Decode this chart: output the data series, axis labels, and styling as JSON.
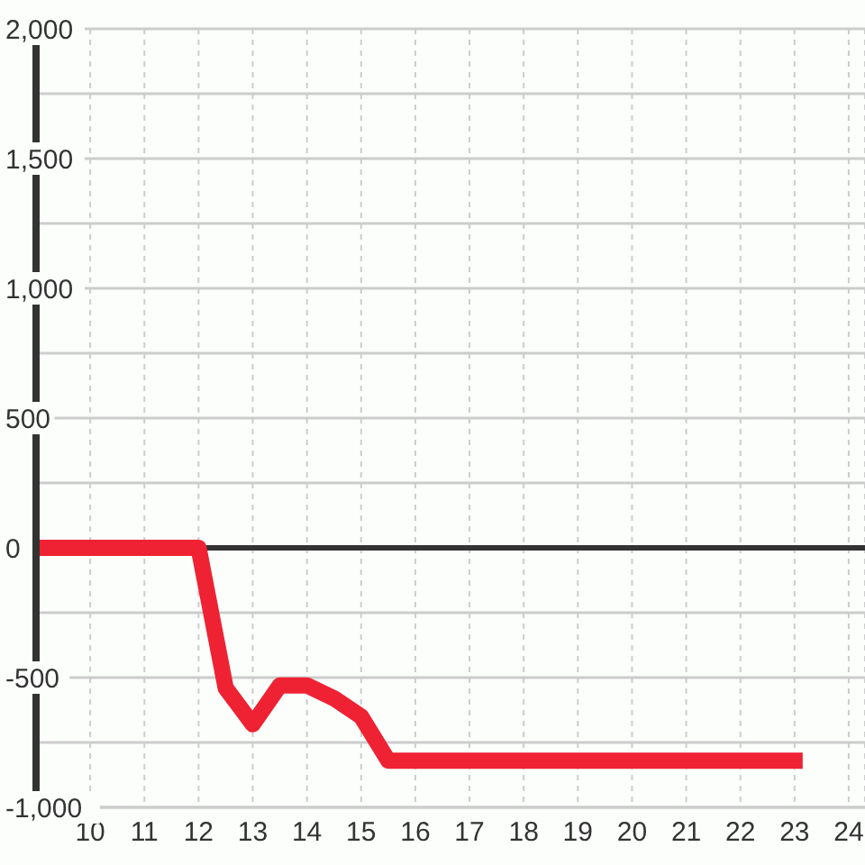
{
  "chart_data": {
    "type": "line",
    "x": [
      9,
      12,
      12.5,
      13,
      13.5,
      14,
      14.5,
      15,
      15.5,
      23
    ],
    "series": [
      {
        "color": "#ee2233",
        "values": [
          0,
          0,
          -540,
          -680,
          -530,
          -530,
          -580,
          -650,
          -820,
          -820
        ]
      }
    ],
    "xlim": [
      9,
      24.3
    ],
    "xticks": [
      10,
      11,
      12,
      13,
      14,
      15,
      16,
      17,
      18,
      19,
      20,
      21,
      22,
      23,
      24
    ],
    "ylim": [
      -1000,
      2000
    ],
    "yticks": [
      {
        "value": -1000,
        "label": "-1,000"
      },
      {
        "value": -750,
        "label": null
      },
      -500,
      {
        "value": -250,
        "label": null
      },
      0,
      {
        "value": 250,
        "label": null
      },
      500,
      {
        "value": 750,
        "label": null
      },
      {
        "value": 1000,
        "label": "1,000"
      },
      {
        "value": 1250,
        "label": null
      },
      {
        "value": 1500,
        "label": "1,500"
      },
      {
        "value": 1750,
        "label": null
      },
      {
        "value": 2000,
        "label": "2,000"
      }
    ],
    "grid": true,
    "line_style": "solid",
    "ref_lines": [
      {
        "axis": "y",
        "value": 0,
        "color": "#333333"
      }
    ]
  }
}
